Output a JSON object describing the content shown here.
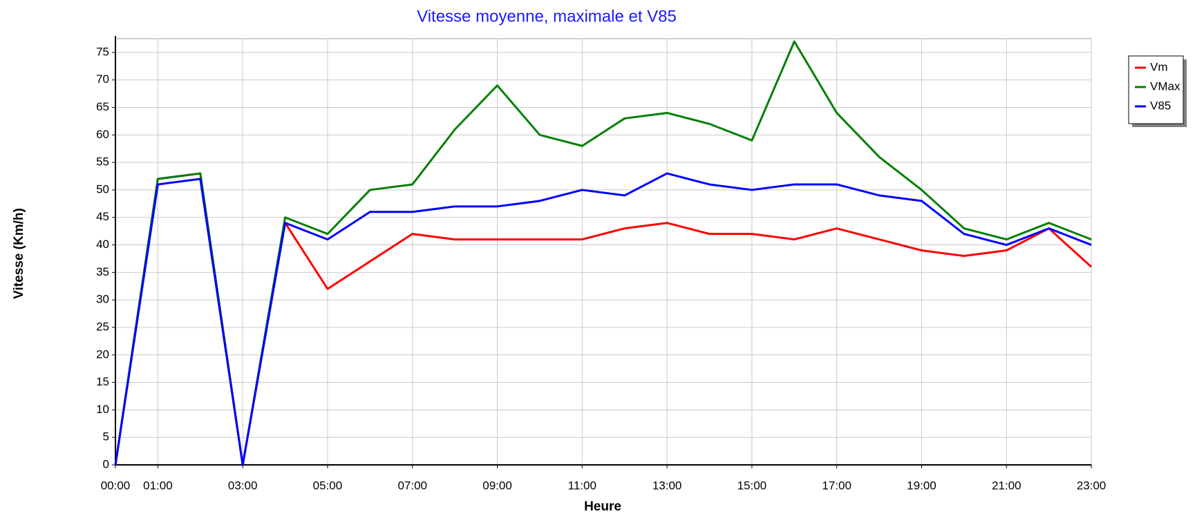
{
  "chart_data": {
    "type": "line",
    "title": "Vitesse moyenne, maximale et V85",
    "x_label": "Heure",
    "y_label": "Vitesse (Km/h)",
    "categories": [
      "00:00",
      "01:00",
      null,
      "03:00",
      null,
      "05:00",
      null,
      "07:00",
      null,
      "09:00",
      null,
      "11:00",
      null,
      "13:00",
      null,
      "15:00",
      null,
      "17:00",
      null,
      "19:00",
      null,
      "21:00",
      null,
      "23:00"
    ],
    "series": [
      {
        "name": "Vm",
        "color": "#ff0000",
        "values": [
          0,
          52,
          53,
          0,
          44,
          32,
          37,
          42,
          41,
          41,
          41,
          41,
          43,
          44,
          42,
          42,
          41,
          43,
          41,
          39,
          38,
          39,
          43,
          36
        ]
      },
      {
        "name": "VMax",
        "color": "#008000",
        "values": [
          0,
          52,
          53,
          0,
          45,
          42,
          50,
          51,
          61,
          69,
          60,
          58,
          63,
          64,
          62,
          59,
          77,
          64,
          56,
          50,
          43,
          41,
          44,
          41
        ]
      },
      {
        "name": "V85",
        "color": "#0000ff",
        "values": [
          0,
          51,
          52,
          0,
          44,
          41,
          46,
          46,
          47,
          47,
          48,
          50,
          49,
          53,
          51,
          50,
          51,
          51,
          49,
          48,
          42,
          40,
          43,
          40
        ]
      }
    ],
    "ylim": [
      0,
      77.5
    ],
    "yticks": [
      0,
      5,
      10,
      15,
      20,
      25,
      30,
      35,
      40,
      45,
      50,
      55,
      60,
      65,
      70,
      75
    ],
    "grid": true,
    "legend": "right"
  }
}
